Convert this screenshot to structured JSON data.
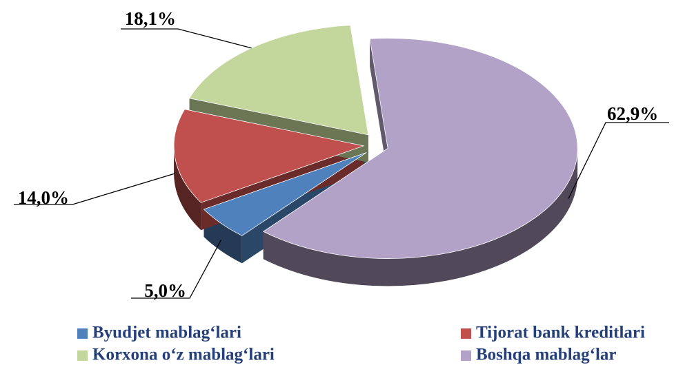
{
  "chart_data": {
    "type": "pie",
    "categories": [
      "Byudjet mablag‘lari",
      "Tijorat bank kreditlari",
      "Korxona o‘z mablag‘lari",
      "Boshqa mablag‘lar"
    ],
    "values": [
      5.0,
      14.0,
      18.1,
      62.9
    ],
    "value_labels": [
      "5,0%",
      "14,0%",
      "18,1%",
      "62,9%"
    ],
    "colors": [
      "#4f81bd",
      "#c0504d",
      "#c3d69b",
      "#b3a2c7"
    ],
    "legend": "bottom"
  }
}
